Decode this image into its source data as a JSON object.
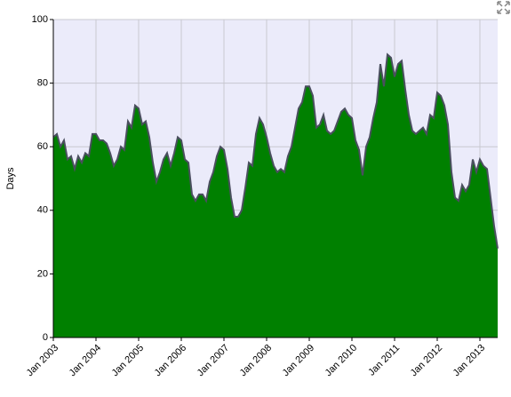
{
  "chart_data": {
    "type": "area",
    "y_label": "Days",
    "color": "#008000",
    "line_color": "#4a4f5e",
    "x": [
      "2003-01",
      "2003-02",
      "2003-03",
      "2003-04",
      "2003-05",
      "2003-06",
      "2003-07",
      "2003-08",
      "2003-09",
      "2003-10",
      "2003-11",
      "2003-12",
      "2004-01",
      "2004-02",
      "2004-03",
      "2004-04",
      "2004-05",
      "2004-06",
      "2004-07",
      "2004-08",
      "2004-09",
      "2004-10",
      "2004-11",
      "2004-12",
      "2005-01",
      "2005-02",
      "2005-03",
      "2005-04",
      "2005-05",
      "2005-06",
      "2005-07",
      "2005-08",
      "2005-09",
      "2005-10",
      "2005-11",
      "2005-12",
      "2006-01",
      "2006-02",
      "2006-03",
      "2006-04",
      "2006-05",
      "2006-06",
      "2006-07",
      "2006-08",
      "2006-09",
      "2006-10",
      "2006-11",
      "2006-12",
      "2007-01",
      "2007-02",
      "2007-03",
      "2007-04",
      "2007-05",
      "2007-06",
      "2007-07",
      "2007-08",
      "2007-09",
      "2007-10",
      "2007-11",
      "2007-12",
      "2008-01",
      "2008-02",
      "2008-03",
      "2008-04",
      "2008-05",
      "2008-06",
      "2008-07",
      "2008-08",
      "2008-09",
      "2008-10",
      "2008-11",
      "2008-12",
      "2009-01",
      "2009-02",
      "2009-03",
      "2009-04",
      "2009-05",
      "2009-06",
      "2009-07",
      "2009-08",
      "2009-09",
      "2009-10",
      "2009-11",
      "2009-12",
      "2010-01",
      "2010-02",
      "2010-03",
      "2010-04",
      "2010-05",
      "2010-06",
      "2010-07",
      "2010-08",
      "2010-09",
      "2010-10",
      "2010-11",
      "2010-12",
      "2011-01",
      "2011-02",
      "2011-03",
      "2011-04",
      "2011-05",
      "2011-06",
      "2011-07",
      "2011-08",
      "2011-09",
      "2011-10",
      "2011-11",
      "2011-12",
      "2012-01",
      "2012-02",
      "2012-03",
      "2012-04",
      "2012-05",
      "2012-06",
      "2012-07",
      "2012-08",
      "2012-09",
      "2012-10",
      "2012-11",
      "2012-12",
      "2013-01",
      "2013-02",
      "2013-03",
      "2013-04",
      "2013-05",
      "2013-06"
    ],
    "values": [
      63,
      64,
      60,
      62,
      56,
      57,
      53,
      57,
      55,
      58,
      57,
      64,
      64,
      62,
      62,
      61,
      58,
      54,
      56,
      60,
      59,
      68,
      66,
      73,
      72,
      67,
      68,
      63,
      55,
      49,
      52,
      56,
      58,
      54,
      58,
      63,
      62,
      56,
      55,
      45,
      43,
      45,
      45,
      43,
      49,
      52,
      57,
      60,
      59,
      53,
      44,
      38,
      38,
      40,
      47,
      55,
      54,
      64,
      69,
      67,
      63,
      58,
      54,
      52,
      53,
      52,
      57,
      60,
      66,
      72,
      74,
      79,
      79,
      76,
      66,
      67,
      70,
      65,
      64,
      65,
      68,
      71,
      72,
      70,
      69,
      62,
      59,
      51,
      60,
      63,
      69,
      74,
      86,
      79,
      89,
      88,
      82,
      86,
      87,
      78,
      70,
      65,
      64,
      65,
      66,
      64,
      70,
      69,
      77,
      76,
      73,
      67,
      52,
      44,
      43,
      48,
      46,
      48,
      56,
      52,
      56,
      54,
      53,
      44,
      35,
      28
    ],
    "xlim": [
      "2003-01",
      "2013-06"
    ],
    "xticks": [
      {
        "value": "2003-01",
        "label": "Jan 2003"
      },
      {
        "value": "2004-01",
        "label": "Jan 2004"
      },
      {
        "value": "2005-01",
        "label": "Jan 2005"
      },
      {
        "value": "2006-01",
        "label": "Jan 2006"
      },
      {
        "value": "2007-01",
        "label": "Jan 2007"
      },
      {
        "value": "2008-01",
        "label": "Jan 2008"
      },
      {
        "value": "2009-01",
        "label": "Jan 2009"
      },
      {
        "value": "2010-01",
        "label": "Jan 2010"
      },
      {
        "value": "2011-01",
        "label": "Jan 2011"
      },
      {
        "value": "2012-01",
        "label": "Jan 2012"
      },
      {
        "value": "2013-01",
        "label": "Jan 2013"
      }
    ],
    "ylim": [
      0,
      100
    ],
    "yticks": [
      0,
      20,
      40,
      60,
      80,
      100
    ],
    "grid": true
  }
}
